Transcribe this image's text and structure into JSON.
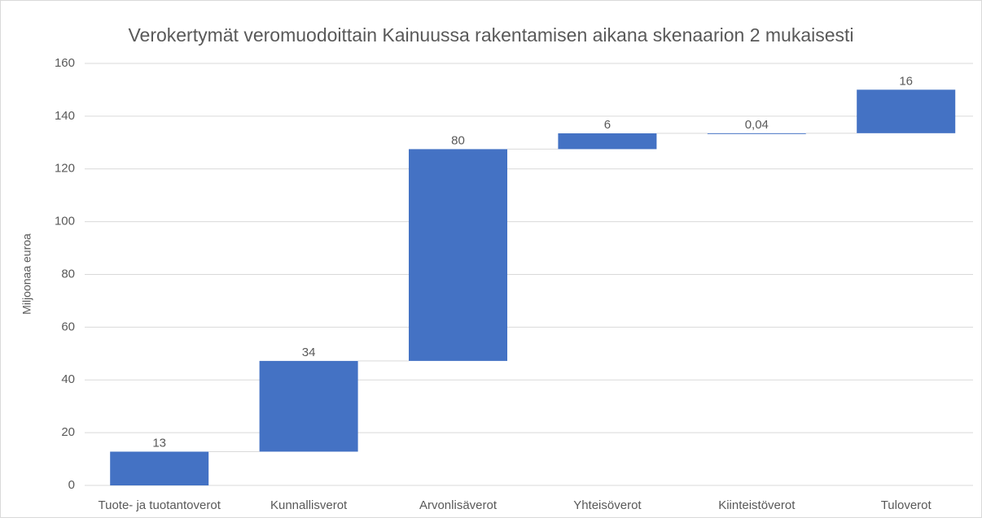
{
  "chart_data": {
    "type": "waterfall",
    "title": "Verokertymät veromuodoittain Kainuussa rakentamisen aikana skenaarion 2 mukaisesti",
    "y_label": "Miljoonaa euroa",
    "categories": [
      "Tuote- ja tuotantoverot",
      "Kunnallisverot",
      "Arvonlisäverot",
      "Yhteisöverot",
      "Kiinteistöverot",
      "Tuloverot"
    ],
    "values": [
      12.8,
      34.4,
      80.3,
      6,
      0.04,
      16.5
    ],
    "value_labels": [
      "13",
      "34",
      "80",
      "6",
      "0,04",
      "16"
    ],
    "color": "#4472c4",
    "ylim": [
      0,
      160
    ],
    "yticks": [
      0,
      20,
      40,
      60,
      80,
      100,
      120,
      140,
      160
    ],
    "grid": true
  }
}
